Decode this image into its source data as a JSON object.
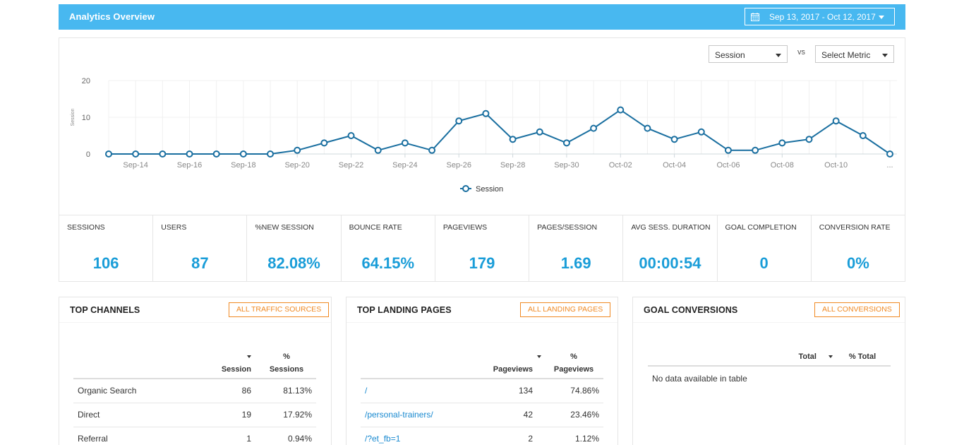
{
  "header": {
    "title": "Analytics Overview",
    "date_range": "Sep 13, 2017 - Oct 12, 2017"
  },
  "controls": {
    "metric1": "Session",
    "vs": "vs",
    "metric2": "Select Metric"
  },
  "chart_data": {
    "type": "line",
    "ylabel": "Session",
    "ylim": [
      0,
      20
    ],
    "yticks": [
      0,
      10,
      20
    ],
    "x_tick_labels": [
      "Sep-14",
      "Sep-16",
      "Sep-18",
      "Sep-20",
      "Sep-22",
      "Sep-24",
      "Sep-26",
      "Sep-28",
      "Sep-30",
      "Oct-02",
      "Oct-04",
      "Oct-06",
      "Oct-08",
      "Oct-10",
      "..."
    ],
    "x": [
      "Sep-13",
      "Sep-14",
      "Sep-15",
      "Sep-16",
      "Sep-17",
      "Sep-18",
      "Sep-19",
      "Sep-20",
      "Sep-21",
      "Sep-22",
      "Sep-23",
      "Sep-24",
      "Sep-25",
      "Sep-26",
      "Sep-27",
      "Sep-28",
      "Sep-29",
      "Sep-30",
      "Oct-01",
      "Oct-02",
      "Oct-03",
      "Oct-04",
      "Oct-05",
      "Oct-06",
      "Oct-07",
      "Oct-08",
      "Oct-09",
      "Oct-10",
      "Oct-11",
      "Oct-12"
    ],
    "series": [
      {
        "name": "Session",
        "values": [
          0,
          0,
          0,
          0,
          0,
          0,
          0,
          1,
          3,
          5,
          1,
          3,
          1,
          9,
          11,
          4,
          6,
          3,
          7,
          12,
          7,
          4,
          6,
          1,
          1,
          3,
          4,
          9,
          5,
          0
        ]
      }
    ],
    "legend": "bottom-center",
    "grid": true,
    "color": "#1a6fa0"
  },
  "stats": [
    {
      "label": "SESSIONS",
      "value": "106"
    },
    {
      "label": "USERS",
      "value": "87"
    },
    {
      "label": "%NEW SESSION",
      "value": "82.08%"
    },
    {
      "label": "BOUNCE RATE",
      "value": "64.15%"
    },
    {
      "label": "PAGEVIEWS",
      "value": "179"
    },
    {
      "label": "PAGES/SESSION",
      "value": "1.69"
    },
    {
      "label": "AVG SESS. DURATION",
      "value": "00:00:54"
    },
    {
      "label": "GOAL COMPLETION",
      "value": "0"
    },
    {
      "label": "CONVERSION RATE",
      "value": "0%"
    }
  ],
  "channels": {
    "title": "TOP CHANNELS",
    "button": "ALL TRAFFIC SOURCES",
    "col1": "Session",
    "col2_top": "%",
    "col2_bottom": "Sessions",
    "rows": [
      {
        "name": "Organic Search",
        "v": "86",
        "p": "81.13%"
      },
      {
        "name": "Direct",
        "v": "19",
        "p": "17.92%"
      },
      {
        "name": "Referral",
        "v": "1",
        "p": "0.94%"
      }
    ]
  },
  "landing": {
    "title": "TOP LANDING PAGES",
    "button": "ALL LANDING PAGES",
    "col1": "Pageviews",
    "col2_top": "%",
    "col2_bottom": "Pageviews",
    "rows": [
      {
        "name": "/",
        "v": "134",
        "p": "74.86%"
      },
      {
        "name": "/personal-trainers/",
        "v": "42",
        "p": "23.46%"
      },
      {
        "name": "/?et_fb=1",
        "v": "2",
        "p": "1.12%"
      }
    ]
  },
  "goals": {
    "title": "GOAL CONVERSIONS",
    "button": "ALL CONVERSIONS",
    "col1": "Total",
    "col2": "% Total",
    "empty": "No data available in table"
  }
}
